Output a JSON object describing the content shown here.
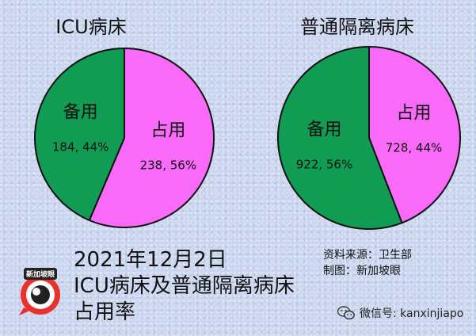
{
  "colors": {
    "occupied": "#f86af7",
    "spare": "#119c54",
    "background": "#c9d4ee"
  },
  "chart_data": [
    {
      "type": "pie",
      "title": "ICU病床",
      "slices": [
        {
          "label": "占用",
          "value": 238,
          "pct_label": "238, 56%"
        },
        {
          "label": "备用",
          "value": 184,
          "pct_label": "184, 44%"
        }
      ]
    },
    {
      "type": "pie",
      "title": "普通隔离病床",
      "slices": [
        {
          "label": "占用",
          "value": 728,
          "pct_label": "728, 44%"
        },
        {
          "label": "备用",
          "value": 922,
          "pct_label": "922, 56%"
        }
      ]
    }
  ],
  "caption": {
    "line1": "2021年12月2日",
    "line2": "ICU病床及普通隔离病床",
    "line3": "占用率"
  },
  "source": {
    "line1": "资料来源：卫生部",
    "line2": "制图：新加坡眼"
  },
  "logo": {
    "text": "新加坡眼",
    "icon": "eye-logo-icon"
  },
  "wechat": {
    "text": "微信号: kanxinjiapo",
    "icon": "wechat-icon"
  }
}
